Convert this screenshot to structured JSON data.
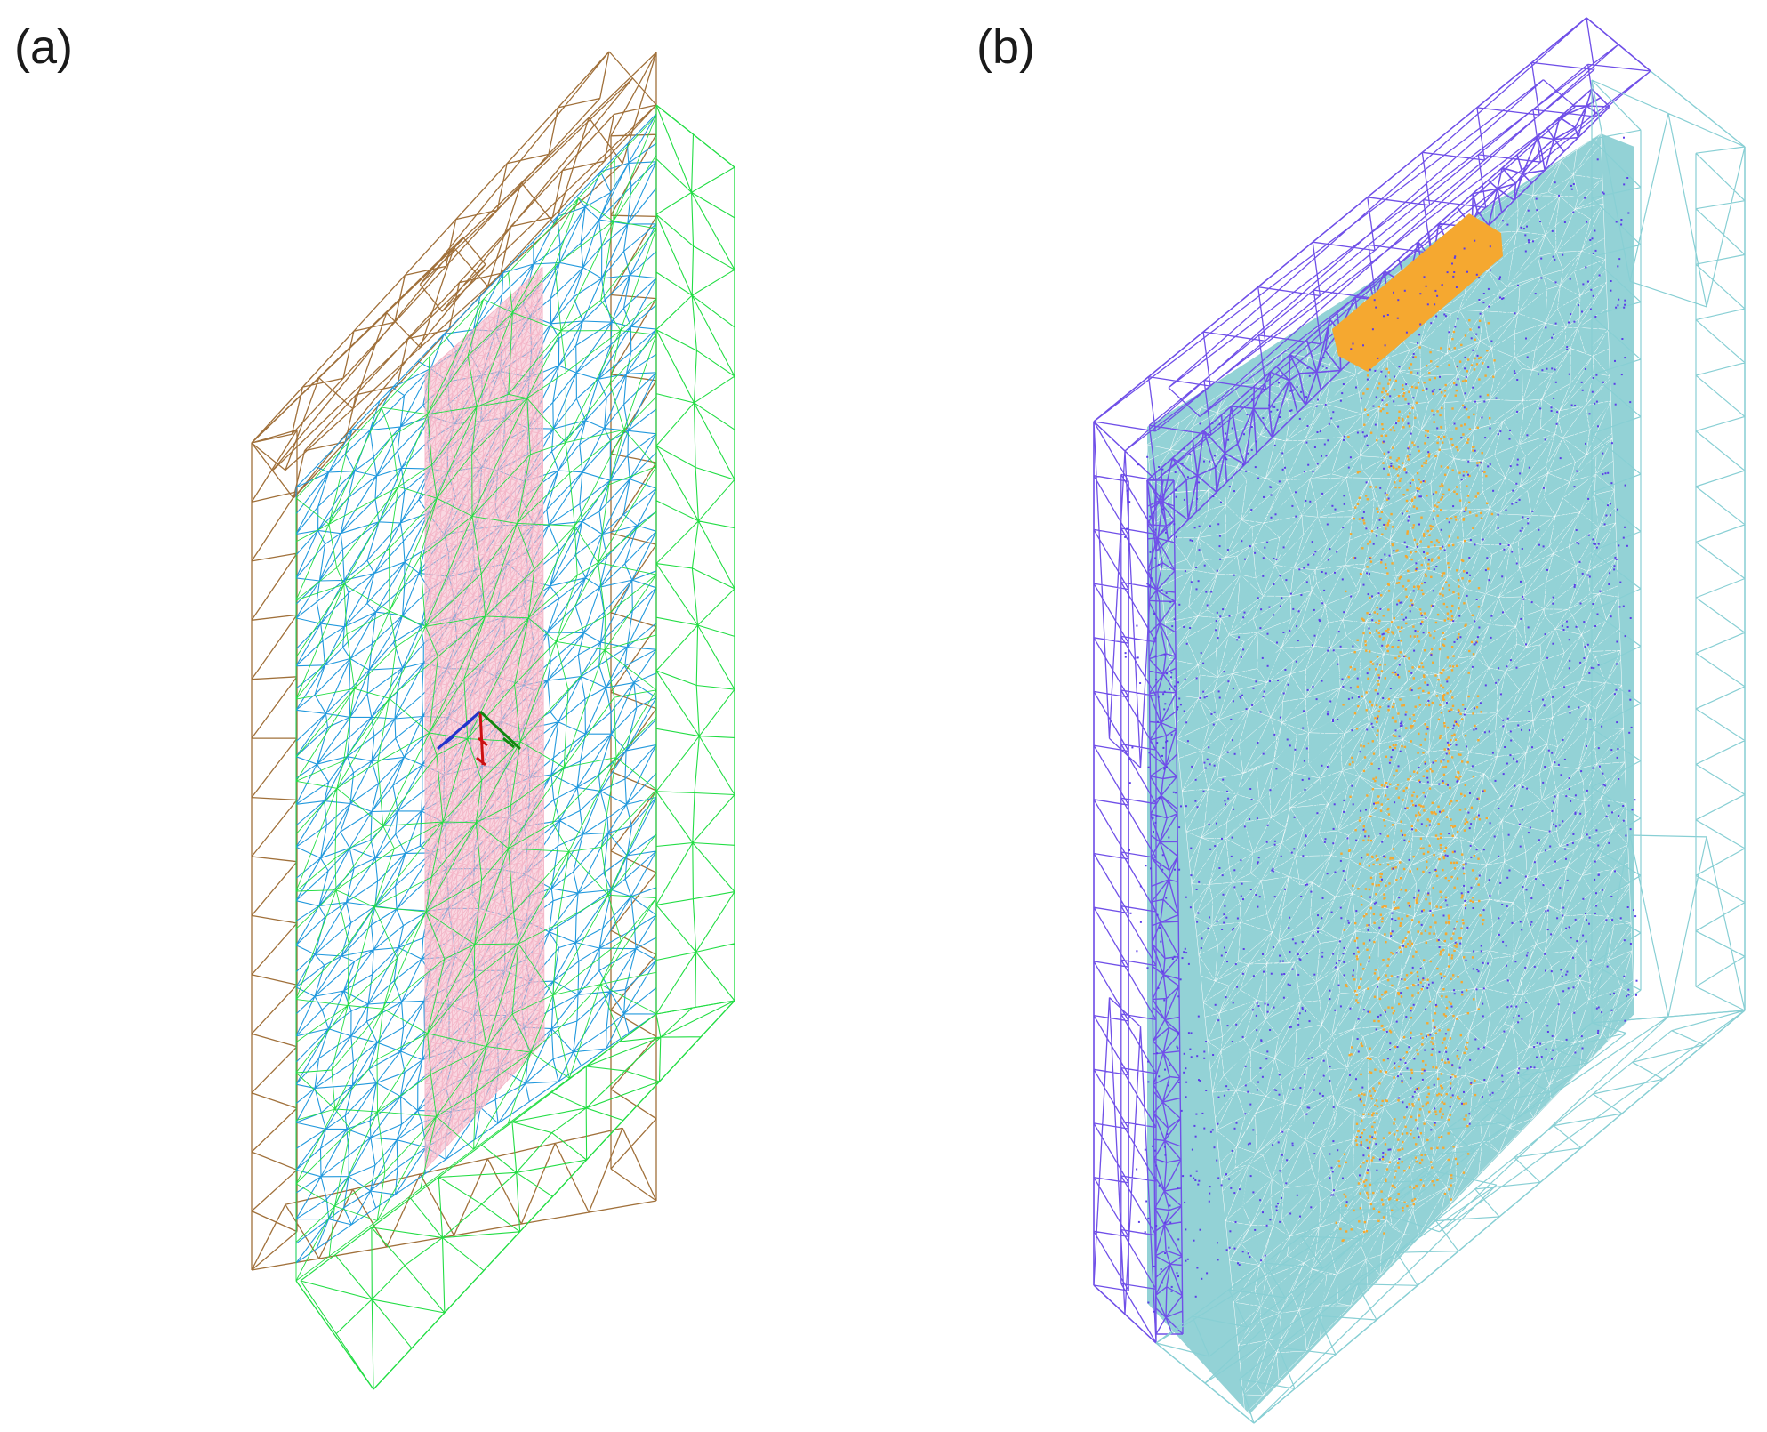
{
  "panels": [
    {
      "label": "(a)",
      "colors": {
        "back_frame": "#a0703a",
        "front_frame": "#22dd44",
        "outer_mesh": "#2299dd",
        "inner_mesh": "#f4b6c8",
        "marker_blue": "#2233cc",
        "marker_red": "#cc1111",
        "marker_green": "#118811"
      }
    },
    {
      "label": "(b)",
      "colors": {
        "back_frame": "#7050e8",
        "front_frame": "#88cfd4",
        "fill_mesh": "#93d2d6",
        "highlight": "#f5a830",
        "speckle": "#5b3de8"
      }
    }
  ]
}
